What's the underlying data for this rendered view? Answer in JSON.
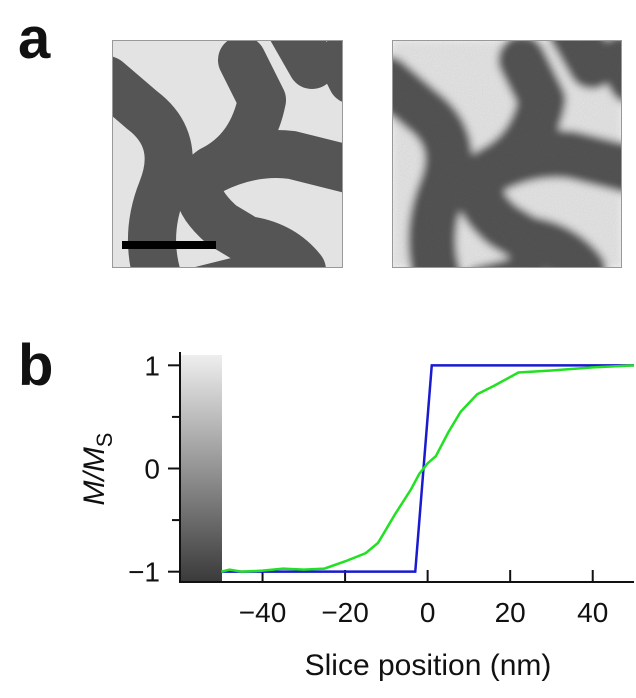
{
  "panels": {
    "a": "a",
    "b": "b"
  },
  "chart_data": {
    "type": "line",
    "xlabel": "Slice position (nm)",
    "ylabel": {
      "main": "M/M",
      "sub": "S"
    },
    "xlim": [
      -60,
      50
    ],
    "ylim": [
      -1.1,
      1.1
    ],
    "xticks": [
      {
        "value": -40,
        "label": "−40"
      },
      {
        "value": -20,
        "label": "−20"
      },
      0,
      20,
      40
    ],
    "yticks": [
      {
        "value": -1,
        "label": "−1"
      },
      0,
      1
    ],
    "yminor": [
      -0.5,
      0.5
    ],
    "series": [
      {
        "color": "#1a1ad0",
        "x": [
          -50,
          -3,
          1,
          50
        ],
        "values": [
          -1,
          -1,
          1,
          1
        ]
      },
      {
        "color": "#22e022",
        "x": [
          -50,
          -48,
          -45,
          -40,
          -35,
          -30,
          -25,
          -20,
          -15,
          -12,
          -8,
          -4,
          -2,
          0,
          2,
          5,
          8,
          12,
          16,
          22,
          30,
          40,
          50
        ],
        "values": [
          -1,
          -0.98,
          -1,
          -0.99,
          -0.97,
          -0.98,
          -0.97,
          -0.9,
          -0.82,
          -0.72,
          -0.45,
          -0.2,
          -0.05,
          0.05,
          0.12,
          0.35,
          0.55,
          0.72,
          0.8,
          0.93,
          0.95,
          0.98,
          1.0
        ]
      }
    ]
  }
}
